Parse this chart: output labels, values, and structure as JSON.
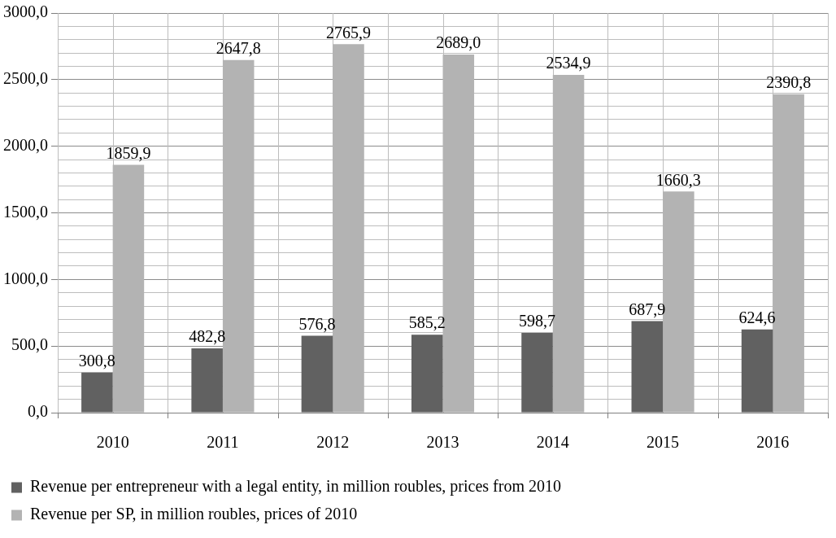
{
  "chart_data": {
    "type": "bar",
    "categories": [
      "2010",
      "2011",
      "2012",
      "2013",
      "2014",
      "2015",
      "2016"
    ],
    "series": [
      {
        "name": "Revenue per entrepreneur with a legal entity, in million roubles, prices from 2010",
        "color": "#616161",
        "values": [
          300.8,
          482.8,
          576.8,
          585.2,
          598.7,
          687.9,
          624.6
        ],
        "value_labels": [
          "300,8",
          "482,8",
          "576,8",
          "585,2",
          "598,7",
          "687,9",
          "624,6"
        ]
      },
      {
        "name": "Revenue per SP, in million roubles, prices of 2010",
        "color": "#b3b3b3",
        "values": [
          1859.9,
          2647.8,
          2765.9,
          2689.0,
          2534.9,
          1660.3,
          2390.8
        ],
        "value_labels": [
          "1859,9",
          "2647,8",
          "2765,9",
          "2689,0",
          "2534,9",
          "1660,3",
          "2390,8"
        ]
      }
    ],
    "ylim": [
      0,
      3000
    ],
    "yticks": [
      {
        "value": 0,
        "label": "0,0"
      },
      {
        "value": 100,
        "label": null
      },
      {
        "value": 200,
        "label": null
      },
      {
        "value": 300,
        "label": null
      },
      {
        "value": 400,
        "label": null
      },
      {
        "value": 500,
        "label": "500,0"
      },
      {
        "value": 600,
        "label": null
      },
      {
        "value": 700,
        "label": null
      },
      {
        "value": 800,
        "label": null
      },
      {
        "value": 900,
        "label": null
      },
      {
        "value": 1000,
        "label": "1000,0"
      },
      {
        "value": 1100,
        "label": null
      },
      {
        "value": 1200,
        "label": null
      },
      {
        "value": 1300,
        "label": null
      },
      {
        "value": 1400,
        "label": null
      },
      {
        "value": 1500,
        "label": "1500,0"
      },
      {
        "value": 1600,
        "label": null
      },
      {
        "value": 1700,
        "label": null
      },
      {
        "value": 1800,
        "label": null
      },
      {
        "value": 1900,
        "label": null
      },
      {
        "value": 2000,
        "label": "2000,0"
      },
      {
        "value": 2100,
        "label": null
      },
      {
        "value": 2200,
        "label": null
      },
      {
        "value": 2300,
        "label": null
      },
      {
        "value": 2400,
        "label": null
      },
      {
        "value": 2500,
        "label": "2500,0"
      },
      {
        "value": 2600,
        "label": null
      },
      {
        "value": 2700,
        "label": null
      },
      {
        "value": 2800,
        "label": null
      },
      {
        "value": 2900,
        "label": null
      },
      {
        "value": 3000,
        "label": "3000,0"
      }
    ],
    "grid": true,
    "legend": "bottom"
  }
}
